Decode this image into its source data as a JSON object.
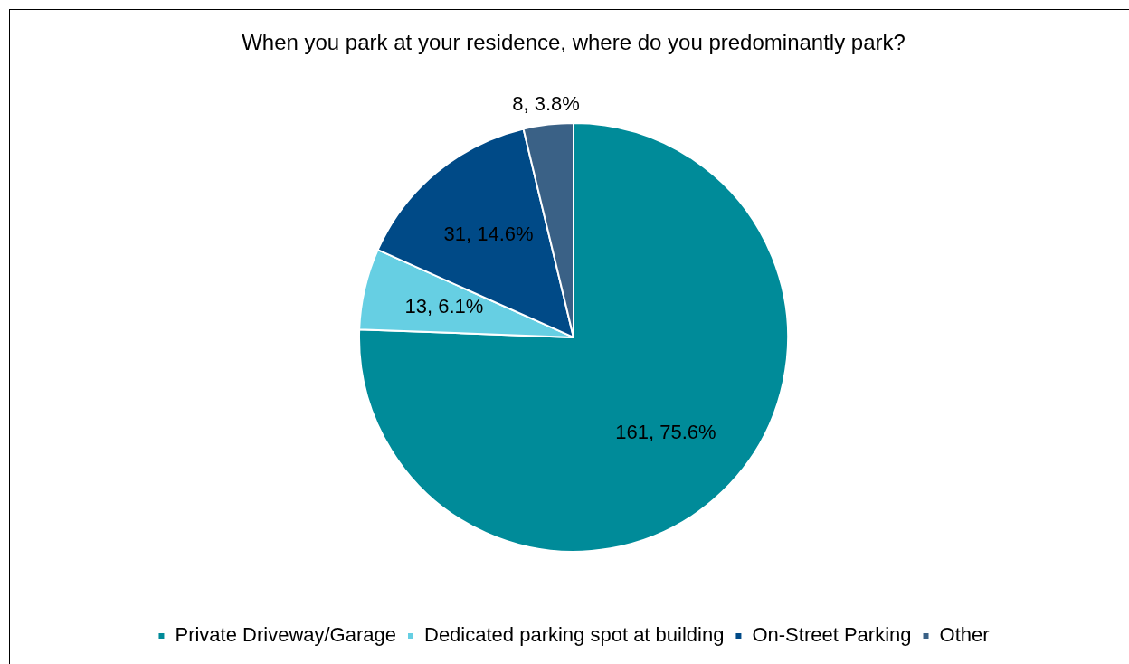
{
  "chart_data": {
    "type": "pie",
    "title": "When you park at your residence, where do you predominantly park?",
    "categories": [
      "Private Driveway/Garage",
      "Dedicated parking spot at building",
      "On-Street Parking",
      "Other"
    ],
    "values": [
      161,
      13,
      31,
      8
    ],
    "value_labels": [
      "161, 75.6%",
      "13, 6.1%",
      "31, 14.6%",
      "8, 3.8%"
    ],
    "colors": [
      "#008b99",
      "#66cfe3",
      "#004a87",
      "#3a6186"
    ],
    "legend": "bottom"
  }
}
